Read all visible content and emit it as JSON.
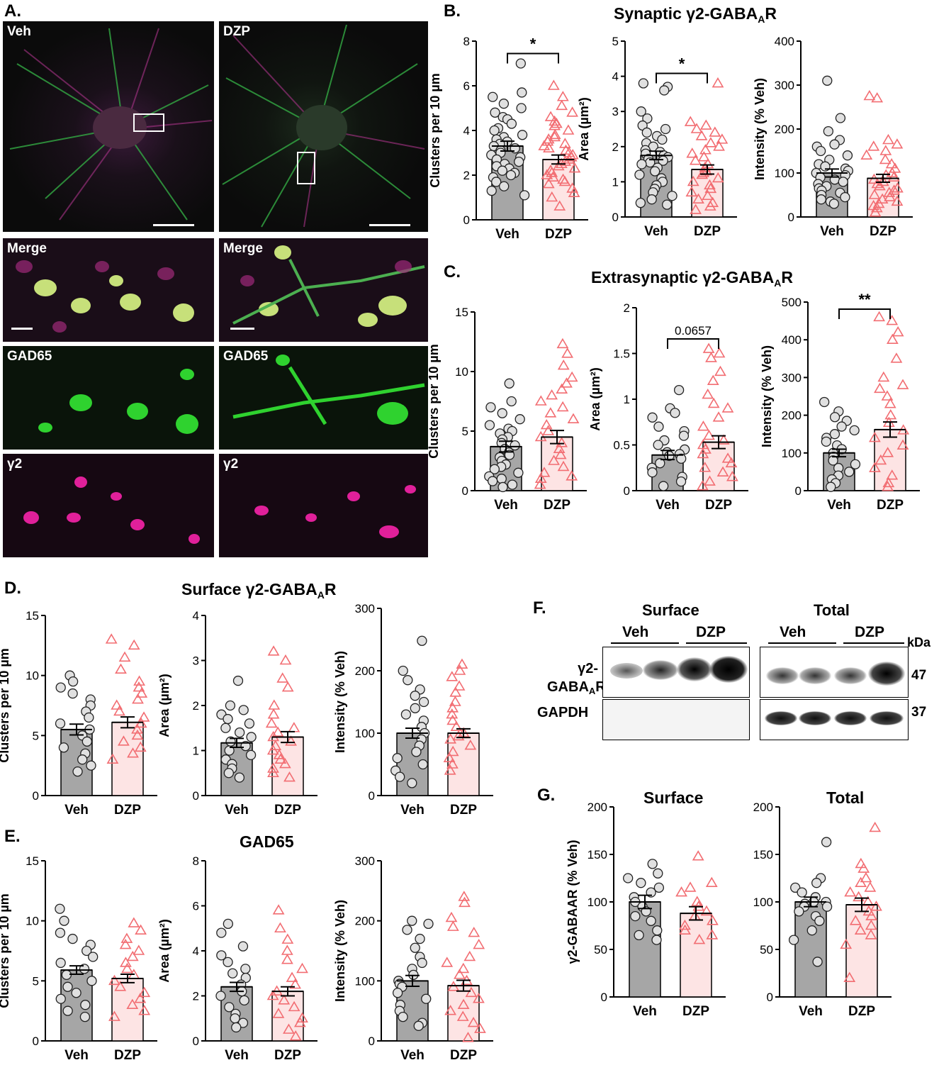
{
  "panel_letters": {
    "A": "A.",
    "B": "B.",
    "C": "C.",
    "D": "D.",
    "E": "E.",
    "F": "F.",
    "G": "G."
  },
  "titles": {
    "B": {
      "main": "Synaptic γ2-GABA",
      "sub": "A",
      "tail": "R"
    },
    "C": {
      "main": "Extrasynaptic γ2-GABA",
      "sub": "A",
      "tail": "R"
    },
    "D": {
      "main": "Surface γ2-GABA",
      "sub": "A",
      "tail": "R"
    },
    "E": {
      "main": "GAD65",
      "sub": "",
      "tail": ""
    },
    "G_left": {
      "main": "Surface",
      "sub": "",
      "tail": ""
    },
    "G_right": {
      "main": "Total",
      "sub": "",
      "tail": ""
    }
  },
  "microscopy": {
    "overview_labels": [
      "Veh",
      "DZP"
    ],
    "rows": [
      {
        "left": "Merge",
        "right": "Merge"
      },
      {
        "left": "GAD65",
        "right": "GAD65"
      },
      {
        "left": "γ2",
        "right": "γ2"
      }
    ]
  },
  "blot": {
    "groups": [
      "Surface",
      "Total"
    ],
    "conditions": [
      "Veh",
      "DZP",
      "Veh",
      "DZP"
    ],
    "unit": "kDa",
    "row_labels": {
      "target_main": "γ2-",
      "target_sub_main": "GABA",
      "target_sub": "A",
      "target_tail": "R",
      "control": "GAPDH"
    },
    "mw": [
      "47",
      "37"
    ]
  },
  "colors": {
    "veh_fill": "#a6a6a6",
    "veh_marker": "#e0e0e0",
    "dzp_fill": "#fde4e4",
    "dzp_marker": "#f26d72",
    "black": "#000000"
  },
  "chart_data": [
    {
      "id": "B1",
      "type": "bar",
      "categories": [
        "Veh",
        "DZP"
      ],
      "ylabel": "Clusters per 10 µm",
      "ylim": [
        0,
        8
      ],
      "yticks": [
        0,
        2,
        4,
        6,
        8
      ],
      "values": [
        3.3,
        2.7
      ],
      "sem": [
        0.22,
        0.2
      ],
      "sig": {
        "label": "*"
      },
      "points": [
        [
          7.0,
          5.7,
          5.5,
          5.2,
          5.0,
          4.8,
          4.6,
          4.5,
          4.3,
          4.1,
          4.0,
          3.8,
          3.7,
          3.6,
          3.5,
          3.4,
          3.3,
          3.2,
          3.1,
          3.0,
          2.9,
          2.8,
          2.7,
          2.6,
          2.5,
          2.4,
          2.3,
          2.2,
          2.1,
          2.0,
          1.9,
          1.7,
          1.5,
          1.3,
          1.1
        ],
        [
          6.0,
          5.5,
          5.1,
          4.8,
          4.6,
          4.4,
          4.3,
          4.2,
          4.0,
          3.8,
          3.7,
          3.6,
          3.5,
          3.4,
          3.3,
          3.2,
          3.1,
          3.0,
          2.9,
          2.8,
          2.7,
          2.6,
          2.5,
          2.4,
          2.3,
          2.2,
          2.1,
          2.0,
          1.9,
          1.8,
          1.7,
          1.6,
          1.4,
          1.2,
          1.0,
          0.6
        ]
      ]
    },
    {
      "id": "B2",
      "type": "bar",
      "categories": [
        "Veh",
        "DZP"
      ],
      "ylabel": "Area (µm²)",
      "ylim": [
        0,
        5
      ],
      "yticks": [
        0,
        1,
        2,
        3,
        4,
        5
      ],
      "values": [
        1.75,
        1.35
      ],
      "sem": [
        0.12,
        0.13
      ],
      "sig": {
        "label": "*"
      },
      "points": [
        [
          3.8,
          3.7,
          3.6,
          3.0,
          2.8,
          2.6,
          2.5,
          2.4,
          2.3,
          2.2,
          2.1,
          2.0,
          1.9,
          1.85,
          1.8,
          1.75,
          1.7,
          1.65,
          1.6,
          1.55,
          1.5,
          1.4,
          1.3,
          1.2,
          1.1,
          1.0,
          0.9,
          0.8,
          0.7,
          0.6,
          0.5,
          0.4,
          0.35
        ],
        [
          3.8,
          2.7,
          2.6,
          2.5,
          2.4,
          2.3,
          2.2,
          2.1,
          2.0,
          1.9,
          1.8,
          1.7,
          1.6,
          1.5,
          1.4,
          1.3,
          1.25,
          1.2,
          1.1,
          1.0,
          0.9,
          0.8,
          0.7,
          0.6,
          0.5,
          0.4,
          0.3,
          0.2
        ]
      ]
    },
    {
      "id": "B3",
      "type": "bar",
      "categories": [
        "Veh",
        "DZP"
      ],
      "ylabel": "Intensity (% Veh)",
      "ylim": [
        0,
        400
      ],
      "yticks": [
        0,
        100,
        200,
        300,
        400
      ],
      "values": [
        100,
        88
      ],
      "sem": [
        9,
        9
      ],
      "points": [
        [
          310,
          225,
          195,
          175,
          165,
          160,
          150,
          140,
          130,
          120,
          115,
          110,
          105,
          100,
          95,
          90,
          85,
          80,
          75,
          70,
          65,
          60,
          55,
          50,
          45,
          40,
          35,
          30
        ],
        [
          275,
          270,
          175,
          165,
          160,
          150,
          140,
          130,
          120,
          110,
          100,
          95,
          90,
          85,
          80,
          75,
          70,
          65,
          60,
          55,
          50,
          45,
          40,
          35,
          30,
          25,
          20,
          10
        ]
      ]
    },
    {
      "id": "C1",
      "type": "bar",
      "categories": [
        "Veh",
        "DZP"
      ],
      "ylabel": "Clusters per 10 µm",
      "ylim": [
        0,
        15
      ],
      "yticks": [
        0,
        5,
        10,
        15
      ],
      "values": [
        3.7,
        4.5
      ],
      "sem": [
        0.45,
        0.55
      ],
      "points": [
        [
          9.0,
          7.5,
          7.0,
          6.5,
          6.0,
          5.5,
          5.2,
          5.0,
          4.8,
          4.5,
          4.3,
          4.0,
          3.8,
          3.5,
          3.2,
          3.0,
          2.8,
          2.5,
          2.2,
          2.0,
          1.8,
          1.5,
          1.2,
          1.0,
          0.8,
          0.5,
          0.3
        ],
        [
          12.3,
          11.5,
          10.5,
          9.5,
          9.0,
          8.5,
          8.0,
          7.5,
          7.0,
          6.5,
          6.0,
          5.5,
          5.0,
          4.5,
          4.0,
          3.5,
          3.0,
          2.5,
          2.0,
          1.5,
          1.2,
          1.0,
          0.5
        ]
      ]
    },
    {
      "id": "C2",
      "type": "bar",
      "categories": [
        "Veh",
        "DZP"
      ],
      "ylabel": "Area (µm²)",
      "ylim": [
        0,
        2.0
      ],
      "yticks": [
        0,
        0.5,
        1.0,
        1.5,
        2.0
      ],
      "values": [
        0.39,
        0.53
      ],
      "sem": [
        0.05,
        0.07
      ],
      "sig": {
        "label": "0.0657"
      },
      "points": [
        [
          1.1,
          0.9,
          0.85,
          0.8,
          0.7,
          0.65,
          0.6,
          0.55,
          0.5,
          0.45,
          0.42,
          0.4,
          0.38,
          0.35,
          0.3,
          0.25,
          0.2,
          0.15,
          0.1,
          0.05
        ],
        [
          1.55,
          1.5,
          1.45,
          1.3,
          1.2,
          1.05,
          0.95,
          0.9,
          0.8,
          0.7,
          0.6,
          0.55,
          0.5,
          0.45,
          0.4,
          0.35,
          0.3,
          0.25,
          0.2,
          0.15,
          0.1,
          0.05
        ]
      ]
    },
    {
      "id": "C3",
      "type": "bar",
      "categories": [
        "Veh",
        "DZP"
      ],
      "ylabel": "Intensity (% Veh)",
      "ylim": [
        0,
        500
      ],
      "yticks": [
        0,
        100,
        200,
        300,
        400,
        500
      ],
      "values": [
        100,
        162
      ],
      "sem": [
        10,
        20
      ],
      "sig": {
        "label": "**"
      },
      "points": [
        [
          235,
          210,
          195,
          185,
          170,
          160,
          150,
          140,
          130,
          120,
          110,
          100,
          90,
          80,
          70,
          60,
          50,
          40,
          30,
          20,
          10
        ],
        [
          460,
          450,
          420,
          400,
          350,
          300,
          280,
          270,
          250,
          230,
          200,
          180,
          160,
          140,
          120,
          100,
          80,
          60,
          40,
          20,
          10
        ]
      ]
    },
    {
      "id": "D1",
      "type": "bar",
      "categories": [
        "Veh",
        "DZP"
      ],
      "ylabel": "Clusters per 10 µm",
      "ylim": [
        0,
        15
      ],
      "yticks": [
        0,
        5,
        10,
        15
      ],
      "values": [
        5.5,
        6.1
      ],
      "sem": [
        0.45,
        0.45
      ],
      "points": [
        [
          10,
          9.5,
          9,
          8.5,
          8,
          7.5,
          7,
          6.5,
          6,
          5.5,
          5,
          4.5,
          4,
          3.5,
          3,
          2.5,
          2
        ],
        [
          13,
          12.5,
          11.5,
          10.5,
          9.5,
          9,
          8.5,
          8,
          7.5,
          7,
          6.5,
          6,
          5.5,
          5,
          4.5,
          4,
          3.5,
          3
        ]
      ]
    },
    {
      "id": "D2",
      "type": "bar",
      "categories": [
        "Veh",
        "DZP"
      ],
      "ylabel": "Area (µm²)",
      "ylim": [
        0,
        4
      ],
      "yticks": [
        0,
        1,
        2,
        3,
        4
      ],
      "values": [
        1.17,
        1.3
      ],
      "sem": [
        0.1,
        0.12
      ],
      "points": [
        [
          2.55,
          2.0,
          1.9,
          1.8,
          1.7,
          1.6,
          1.5,
          1.4,
          1.3,
          1.2,
          1.1,
          1.0,
          0.9,
          0.8,
          0.7,
          0.6,
          0.5,
          0.4
        ],
        [
          3.2,
          3.0,
          2.6,
          2.4,
          2.0,
          1.8,
          1.6,
          1.5,
          1.4,
          1.3,
          1.2,
          1.1,
          1.0,
          0.9,
          0.8,
          0.7,
          0.6,
          0.5,
          0.4
        ]
      ]
    },
    {
      "id": "D3",
      "type": "bar",
      "categories": [
        "Veh",
        "DZP"
      ],
      "ylabel": "Intensity (% Veh)",
      "ylim": [
        0,
        300
      ],
      "yticks": [
        0,
        100,
        200,
        300
      ],
      "values": [
        100,
        100
      ],
      "sem": [
        8,
        7
      ],
      "points": [
        [
          248,
          200,
          185,
          170,
          160,
          150,
          140,
          130,
          120,
          110,
          100,
          90,
          80,
          70,
          60,
          50,
          40,
          30,
          20
        ],
        [
          210,
          200,
          190,
          175,
          165,
          150,
          140,
          130,
          120,
          110,
          100,
          95,
          90,
          80,
          70,
          60,
          50,
          40
        ]
      ]
    },
    {
      "id": "E1",
      "type": "bar",
      "categories": [
        "Veh",
        "DZP"
      ],
      "ylabel": "Clusters per 10 µm",
      "ylim": [
        0,
        15
      ],
      "yticks": [
        0,
        5,
        10,
        15
      ],
      "values": [
        5.9,
        5.2
      ],
      "sem": [
        0.35,
        0.35
      ],
      "points": [
        [
          11,
          10,
          9,
          8.5,
          8,
          7.5,
          7,
          6.5,
          6,
          5.5,
          5,
          4.5,
          4,
          3.5,
          3,
          2.5,
          2
        ],
        [
          9.8,
          9.2,
          8.5,
          8,
          7.5,
          7,
          6.5,
          6,
          5.5,
          5,
          4.5,
          4,
          3.5,
          3,
          2.5,
          2
        ]
      ]
    },
    {
      "id": "E2",
      "type": "bar",
      "categories": [
        "Veh",
        "DZP"
      ],
      "ylabel": "Area (µm²)",
      "ylim": [
        0,
        8
      ],
      "yticks": [
        0,
        2,
        4,
        6,
        8
      ],
      "values": [
        2.4,
        2.2
      ],
      "sem": [
        0.2,
        0.2
      ],
      "points": [
        [
          5.2,
          4.8,
          4.2,
          3.8,
          3.5,
          3.2,
          3.0,
          2.8,
          2.5,
          2.2,
          2.0,
          1.8,
          1.5,
          1.2,
          1.0,
          0.8,
          0.6
        ],
        [
          5.8,
          5.0,
          4.5,
          4.0,
          3.6,
          3.2,
          2.8,
          2.5,
          2.2,
          2.0,
          1.8,
          1.5,
          1.2,
          1.0,
          0.8,
          0.5,
          0.2
        ]
      ]
    },
    {
      "id": "E3",
      "type": "bar",
      "categories": [
        "Veh",
        "DZP"
      ],
      "ylabel": "Intensity (% Veh)",
      "ylim": [
        0,
        300
      ],
      "yticks": [
        0,
        100,
        200,
        300
      ],
      "values": [
        100,
        92
      ],
      "sem": [
        9,
        9
      ],
      "points": [
        [
          200,
          195,
          185,
          170,
          155,
          140,
          130,
          120,
          110,
          100,
          95,
          90,
          80,
          70,
          60,
          50,
          40,
          30,
          25
        ],
        [
          240,
          230,
          205,
          190,
          180,
          160,
          140,
          130,
          120,
          110,
          100,
          90,
          80,
          70,
          60,
          50,
          40,
          30,
          20,
          5
        ]
      ]
    },
    {
      "id": "G1",
      "type": "bar",
      "categories": [
        "Veh",
        "DZP"
      ],
      "ylabel": "γ2-GABAAR (% Veh)",
      "ylim": [
        0,
        200
      ],
      "yticks": [
        0,
        50,
        100,
        150,
        200
      ],
      "values": [
        100,
        88
      ],
      "sem": [
        7,
        7
      ],
      "points": [
        [
          140,
          130,
          125,
          120,
          115,
          110,
          105,
          100,
          95,
          90,
          85,
          80,
          70,
          65,
          60
        ],
        [
          148,
          120,
          115,
          110,
          100,
          95,
          90,
          85,
          80,
          75,
          70,
          65,
          60
        ]
      ]
    },
    {
      "id": "G2",
      "type": "bar",
      "categories": [
        "Veh",
        "DZP"
      ],
      "ylabel": "",
      "ylim": [
        0,
        200
      ],
      "yticks": [
        0,
        50,
        100,
        150,
        200
      ],
      "values": [
        100,
        97
      ],
      "sem": [
        5,
        7
      ],
      "points": [
        [
          163,
          125,
          120,
          115,
          110,
          105,
          100,
          100,
          98,
          95,
          95,
          90,
          85,
          80,
          70,
          60,
          37
        ],
        [
          178,
          140,
          135,
          125,
          120,
          115,
          110,
          105,
          100,
          95,
          90,
          85,
          80,
          75,
          70,
          65,
          55,
          20
        ]
      ]
    }
  ]
}
